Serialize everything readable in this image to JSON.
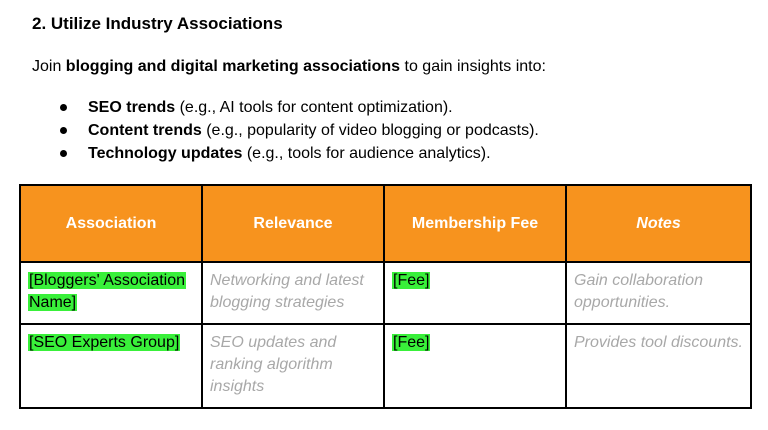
{
  "section": {
    "heading": "2. Utilize Industry Associations",
    "intro_prefix": "Join ",
    "intro_bold": "blogging and digital marketing associations",
    "intro_suffix": " to gain insights into:"
  },
  "bullets": [
    {
      "bold": "SEO trends",
      "rest": " (e.g., AI tools for content optimization)."
    },
    {
      "bold": "Content trends",
      "rest": " (e.g., popularity of video blogging or podcasts)."
    },
    {
      "bold": "Technology updates",
      "rest": " (e.g., tools for audience analytics)."
    }
  ],
  "table": {
    "headers": [
      "Association",
      "Relevance",
      "Membership Fee",
      "Notes"
    ],
    "rows": [
      {
        "association": "[Bloggers' Association Name]",
        "relevance": "Networking and latest blogging strategies",
        "fee": "[Fee]",
        "notes": "Gain collaboration opportunities."
      },
      {
        "association": "[SEO Experts Group]",
        "relevance": "SEO updates and ranking algorithm insights",
        "fee": "[Fee]",
        "notes": "Provides tool discounts."
      }
    ]
  },
  "colors": {
    "header_bg": "#f7931e",
    "header_text": "#ffffff",
    "highlight": "#39f03a",
    "placeholder_text": "#a8a8a8"
  }
}
